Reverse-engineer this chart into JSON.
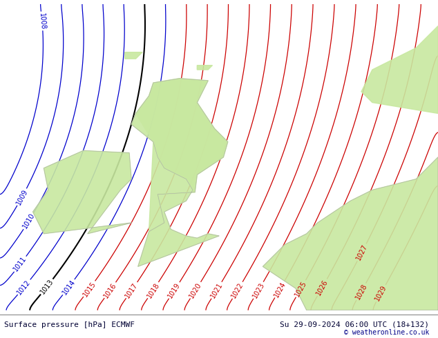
{
  "title_left": "Surface pressure [hPa] ECMWF",
  "title_right": "Su 29-09-2024 06:00 UTC (18+132)",
  "copyright": "© weatheronline.co.uk",
  "bg_color": "#d0d0d0",
  "land_color": "#c8e8a0",
  "sea_color": "#d0d0d0",
  "isobar_red_color": "#cc0000",
  "isobar_blue_color": "#0000cc",
  "isobar_black_color": "#000000",
  "label_fontsize": 7,
  "footer_fontsize": 8,
  "footer_bg": "#e8e8e8",
  "pressure_levels_red": [
    1015,
    1016,
    1017,
    1018,
    1019,
    1020,
    1021,
    1022,
    1023,
    1024,
    1025,
    1026,
    1027,
    1028,
    1029
  ],
  "pressure_levels_blue": [
    1008,
    1009,
    1010,
    1011,
    1012,
    1013,
    1014
  ],
  "pressure_levels_black": [
    1013
  ],
  "figsize": [
    6.34,
    4.9
  ],
  "dpi": 100
}
